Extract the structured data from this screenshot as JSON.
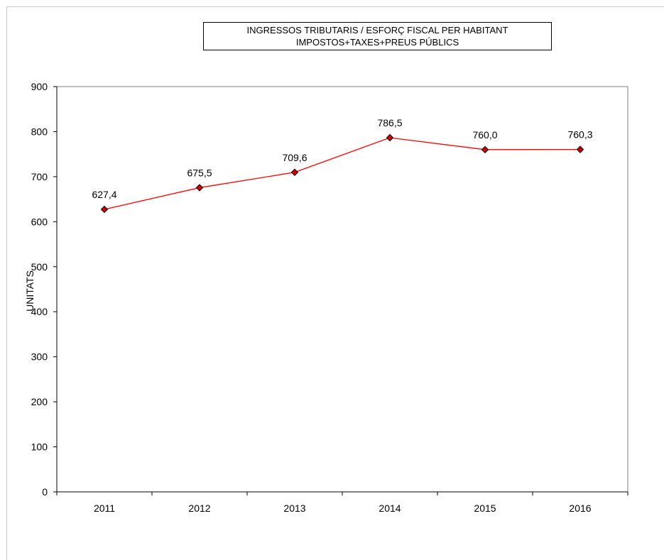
{
  "chart_data": {
    "type": "line",
    "title": "INGRESSOS TRIBUTARIS / ESFORÇ FISCAL PER HABITANT",
    "subtitle": "IMPOSTOS+TAXES+PREUS PÚBLICS",
    "xlabel": "",
    "ylabel": "UNITATS",
    "categories": [
      "2011",
      "2012",
      "2013",
      "2014",
      "2015",
      "2016"
    ],
    "series": [
      {
        "values": [
          627.4,
          675.5,
          709.6,
          786.5,
          760.0,
          760.3
        ],
        "data_labels": [
          "627,4",
          "675,5",
          "709,6",
          "786,5",
          "760,0",
          "760,3"
        ],
        "color": "#ff0000",
        "marker_color": "#cc0000"
      }
    ],
    "ylim": [
      0,
      900
    ],
    "yticks": [
      0,
      100,
      200,
      300,
      400,
      500,
      600,
      700,
      800,
      900
    ],
    "grid": false,
    "legend": "none"
  }
}
